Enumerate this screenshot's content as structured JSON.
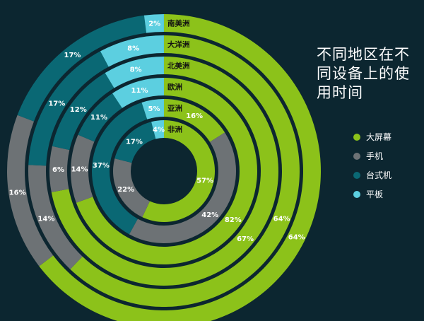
{
  "title_lines": [
    "不同地区在不",
    "同设备上的使",
    "用时间"
  ],
  "colors": {
    "background": "#0c2630",
    "大屏幕": "#8cc21a",
    "手机": "#6d7275",
    "台式机": "#0a6874",
    "平板": "#5ccfe0"
  },
  "chart_data": {
    "type": "radial-stacked-bar",
    "title": "不同地区在不同设备上的使用时间",
    "legend": {
      "position": "right",
      "items": [
        "大屏幕",
        "手机",
        "台式机",
        "平板"
      ]
    },
    "rings_inner_to_outer": [
      "非洲",
      "亚洲",
      "欧洲",
      "北美洲",
      "大洋洲",
      "南美洲"
    ],
    "segment_order_clockwise_from_top": [
      "大屏幕",
      "手机",
      "台式机",
      "平板"
    ],
    "series": [
      {
        "name": "大屏幕",
        "values": [
          57,
          16,
          82,
          67,
          64,
          64
        ]
      },
      {
        "name": "手机",
        "values": [
          22,
          42,
          14,
          6,
          14,
          16
        ]
      },
      {
        "name": "台式机",
        "values": [
          17,
          37,
          11,
          12,
          17,
          17
        ]
      },
      {
        "name": "平板",
        "values": [
          4,
          5,
          11,
          8,
          8,
          2
        ]
      }
    ],
    "labels_shown": {
      "非洲": {
        "大屏幕": "57%",
        "手机": "22%",
        "台式机": "17%",
        "平板": "4%"
      },
      "亚洲": {
        "大屏幕": "16%",
        "手机": "42%",
        "台式机": "37%",
        "平板": "5%"
      },
      "欧洲": {
        "大屏幕": "82%",
        "手机": "14%",
        "台式机": "11%",
        "平板": "11%"
      },
      "北美洲": {
        "大屏幕": "67%",
        "手机": "6%",
        "台式机": "12%",
        "平板": "8%"
      },
      "大洋洲": {
        "大屏幕": "64%",
        "手机": "14%",
        "台式机": "17%",
        "平板": "8%"
      },
      "南美洲": {
        "大屏幕": "64%",
        "手机": "16%",
        "台式机": "17%",
        "平板": "2%"
      }
    }
  }
}
